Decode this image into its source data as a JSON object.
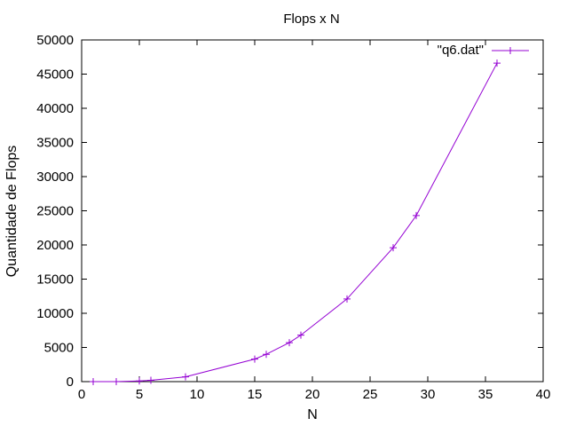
{
  "chart_data": {
    "type": "line",
    "title": "Flops x N",
    "xlabel": "N",
    "ylabel": "Quantidade de Flops",
    "xlim": [
      0,
      40
    ],
    "ylim": [
      0,
      50000
    ],
    "x_ticks": [
      0,
      5,
      10,
      15,
      20,
      25,
      30,
      35,
      40
    ],
    "y_ticks": [
      0,
      5000,
      10000,
      15000,
      20000,
      25000,
      30000,
      35000,
      40000,
      45000,
      50000
    ],
    "grid": false,
    "legend_position": "top-right",
    "series": [
      {
        "name": "\"q6.dat\"",
        "color": "#9400d3",
        "marker": "plus",
        "x": [
          1,
          3,
          5,
          6,
          9,
          15,
          16,
          18,
          19,
          23,
          27,
          29,
          36
        ],
        "y": [
          0,
          0,
          90,
          200,
          700,
          3300,
          4000,
          5700,
          6800,
          12100,
          19600,
          24300,
          46600
        ]
      }
    ]
  }
}
